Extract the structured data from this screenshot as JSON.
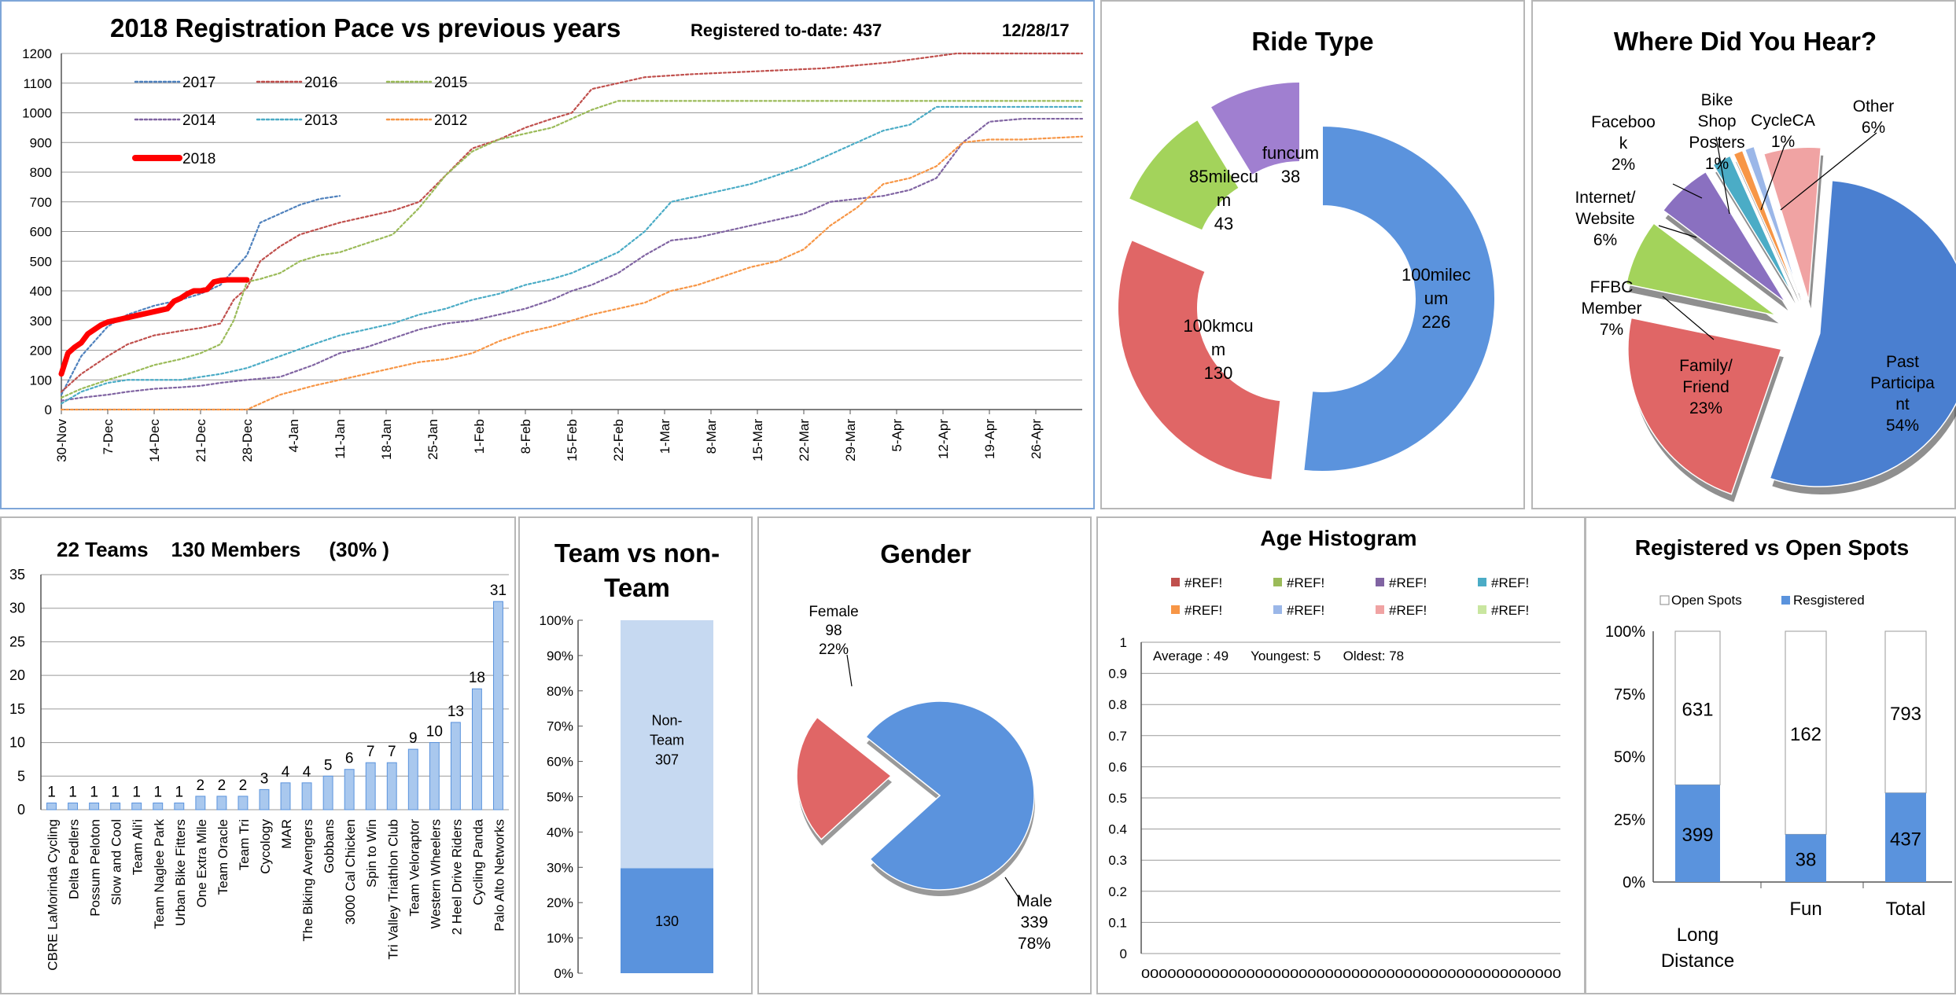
{
  "colors": {
    "grid": "#9a9a9a",
    "axis": "#555555",
    "blue": "#5a93dd",
    "blue_light": "#a9c8ee",
    "red": "#e06666",
    "green": "#a3d35b",
    "purple": "#a07fd0",
    "pink": "#f0a3a3",
    "orange": "#f39a4d",
    "teal": "#55b8d6",
    "highlight": "#ff0000"
  },
  "pace": {
    "title": "2018 Registration Pace vs previous years",
    "registered_label": "Registered to-date: 437",
    "date": "12/28/17",
    "chart_data": {
      "type": "line",
      "title": "2018 Registration Pace vs previous years",
      "ylim": [
        0,
        1200
      ],
      "yticks": [
        "0",
        "100",
        "200",
        "300",
        "400",
        "500",
        "600",
        "700",
        "800",
        "900",
        "1000",
        "1100",
        "1200"
      ],
      "x_labels": [
        "30-Nov",
        "7-Dec",
        "14-Dec",
        "21-Dec",
        "28-Dec",
        "4-Jan",
        "11-Jan",
        "18-Jan",
        "25-Jan",
        "1-Feb",
        "8-Feb",
        "15-Feb",
        "22-Feb",
        "1-Mar",
        "8-Mar",
        "15-Mar",
        "22-Mar",
        "29-Mar",
        "5-Apr",
        "12-Apr",
        "19-Apr",
        "26-Apr"
      ],
      "x_range_days": [
        0,
        154
      ],
      "series": [
        {
          "name": "2017",
          "color": "#4f81bd",
          "dashed": true,
          "days": [
            0,
            3,
            7,
            10,
            14,
            18,
            21,
            24,
            26,
            28,
            30,
            33,
            36,
            39,
            42
          ],
          "values": [
            50,
            180,
            280,
            320,
            350,
            370,
            390,
            420,
            470,
            520,
            630,
            660,
            690,
            710,
            720
          ]
        },
        {
          "name": "2016",
          "color": "#c0504d",
          "dashed": true,
          "days": [
            0,
            3,
            7,
            10,
            14,
            18,
            21,
            24,
            26,
            28,
            30,
            33,
            36,
            39,
            42,
            46,
            50,
            54,
            58,
            62,
            66,
            70,
            74,
            77,
            80,
            84,
            88,
            95,
            105,
            115,
            125,
            135,
            145,
            154
          ],
          "values": [
            60,
            120,
            180,
            220,
            250,
            265,
            275,
            290,
            370,
            410,
            500,
            550,
            590,
            610,
            630,
            650,
            670,
            700,
            790,
            880,
            910,
            950,
            980,
            1000,
            1080,
            1100,
            1120,
            1130,
            1140,
            1150,
            1170,
            1200,
            1200,
            1200
          ]
        },
        {
          "name": "2015",
          "color": "#9bbb59",
          "dashed": true,
          "days": [
            0,
            3,
            7,
            10,
            14,
            18,
            21,
            24,
            26,
            28,
            30,
            33,
            36,
            39,
            42,
            46,
            50,
            54,
            58,
            62,
            66,
            70,
            74,
            77,
            80,
            84,
            88,
            95,
            105,
            115,
            125,
            135,
            145,
            154
          ],
          "values": [
            40,
            70,
            100,
            120,
            150,
            170,
            190,
            220,
            300,
            430,
            440,
            460,
            500,
            520,
            530,
            560,
            590,
            680,
            790,
            870,
            910,
            930,
            950,
            980,
            1010,
            1040,
            1040,
            1040,
            1040,
            1040,
            1040,
            1040,
            1040,
            1040
          ]
        },
        {
          "name": "2014",
          "color": "#8064a2",
          "dashed": true,
          "days": [
            0,
            3,
            7,
            10,
            14,
            18,
            21,
            24,
            28,
            33,
            38,
            42,
            46,
            50,
            54,
            58,
            62,
            66,
            70,
            74,
            77,
            80,
            84,
            88,
            92,
            96,
            100,
            104,
            108,
            112,
            116,
            120,
            124,
            128,
            132,
            136,
            140,
            145,
            154
          ],
          "values": [
            30,
            40,
            50,
            60,
            70,
            75,
            80,
            90,
            100,
            110,
            150,
            190,
            210,
            240,
            270,
            290,
            300,
            320,
            340,
            370,
            400,
            420,
            460,
            520,
            570,
            580,
            600,
            620,
            640,
            660,
            700,
            710,
            720,
            740,
            780,
            900,
            970,
            980,
            980
          ]
        },
        {
          "name": "2013",
          "color": "#4bacc6",
          "dashed": true,
          "days": [
            0,
            3,
            7,
            10,
            14,
            18,
            21,
            24,
            28,
            33,
            38,
            42,
            46,
            50,
            54,
            58,
            62,
            66,
            70,
            74,
            77,
            80,
            84,
            88,
            92,
            96,
            100,
            104,
            108,
            112,
            116,
            120,
            124,
            128,
            132,
            136,
            140,
            145,
            154
          ],
          "values": [
            20,
            60,
            90,
            100,
            100,
            100,
            110,
            120,
            140,
            180,
            220,
            250,
            270,
            290,
            320,
            340,
            370,
            390,
            420,
            440,
            460,
            490,
            530,
            600,
            700,
            720,
            740,
            760,
            790,
            820,
            860,
            900,
            940,
            960,
            1020,
            1020,
            1020,
            1020,
            1020
          ]
        },
        {
          "name": "2012",
          "color": "#f79646",
          "dashed": true,
          "days": [
            0,
            10,
            21,
            28,
            30,
            33,
            38,
            42,
            46,
            50,
            54,
            58,
            62,
            66,
            70,
            74,
            77,
            80,
            84,
            88,
            92,
            96,
            100,
            104,
            108,
            112,
            116,
            120,
            124,
            128,
            132,
            136,
            140,
            145,
            154
          ],
          "values": [
            0,
            0,
            0,
            0,
            20,
            50,
            80,
            100,
            120,
            140,
            160,
            170,
            190,
            230,
            260,
            280,
            300,
            320,
            340,
            360,
            400,
            420,
            450,
            480,
            500,
            540,
            620,
            680,
            760,
            780,
            820,
            900,
            910,
            910,
            920
          ]
        },
        {
          "name": "2018",
          "color": "#ff0000",
          "dashed": false,
          "days": [
            0,
            1,
            2,
            3,
            4,
            5,
            6,
            7,
            8,
            9,
            10,
            11,
            12,
            13,
            14,
            15,
            16,
            17,
            18,
            19,
            20,
            21,
            22,
            23,
            24,
            25,
            26,
            27,
            28
          ],
          "values": [
            120,
            190,
            210,
            225,
            255,
            270,
            285,
            295,
            300,
            305,
            310,
            315,
            320,
            325,
            330,
            335,
            340,
            365,
            375,
            390,
            400,
            400,
            405,
            430,
            435,
            437,
            437,
            437,
            437
          ]
        }
      ]
    }
  },
  "ride_type": {
    "title": "Ride Type",
    "chart_data": {
      "type": "pie",
      "donut": true,
      "title": "Ride Type",
      "slices": [
        {
          "label": "100milec um",
          "value": 226,
          "color": "#5b93dd"
        },
        {
          "label": "100kmcu m",
          "value": 130,
          "color": "#e06666"
        },
        {
          "label": "85milecu m",
          "value": 43,
          "color": "#a3d35b"
        },
        {
          "label": "funcum",
          "value": 38,
          "color": "#a07fd0"
        }
      ]
    }
  },
  "hear": {
    "title": "Where Did You Hear?",
    "chart_data": {
      "type": "pie",
      "title": "Where Did You Hear?",
      "slices": [
        {
          "label": "Past Participant",
          "lines": [
            "Past",
            "Participa",
            "nt",
            "54%"
          ],
          "value": 54,
          "color": "#4a7fd0"
        },
        {
          "label": "Family/ Friend",
          "lines": [
            "Family/",
            "Friend",
            "23%"
          ],
          "value": 23,
          "color": "#e06666"
        },
        {
          "label": "FFBC Member",
          "lines": [
            "FFBC",
            "Member",
            "7%"
          ],
          "value": 7,
          "color": "#a3d35b"
        },
        {
          "label": "Internet/ Website",
          "lines": [
            "Internet/",
            "Website",
            "6%"
          ],
          "value": 6,
          "color": "#8a70c0"
        },
        {
          "label": "Facebook",
          "lines": [
            "Faceboo",
            "k",
            "2%"
          ],
          "value": 2,
          "color": "#4bacc6"
        },
        {
          "label": "Bike Shop Posters",
          "lines": [
            "Bike",
            "Shop",
            "Posters",
            "1%"
          ],
          "value": 1,
          "color": "#f79646"
        },
        {
          "label": "CycleCA",
          "lines": [
            "CycleCA",
            "1%"
          ],
          "value": 1,
          "color": "#9bb7e8"
        },
        {
          "label": "Other",
          "lines": [
            "Other",
            "6%"
          ],
          "value": 6,
          "color": "#f0a3a3"
        }
      ]
    }
  },
  "teams": {
    "title": "22 Teams    130 Members     (30% )",
    "chart_data": {
      "type": "bar",
      "title": "22 Teams 130 Members (30% )",
      "ylim": [
        0,
        35
      ],
      "yticks": [
        "0",
        "5",
        "10",
        "15",
        "20",
        "25",
        "30",
        "35"
      ],
      "categories": [
        "CBRE LaMorinda Cycling",
        "Delta Pedlers",
        "Possum Peloton",
        "Slow and Cool",
        "Team Ali'i",
        "Team Naglee Park",
        "Urban Bike Fitters",
        "One Extra Mile",
        "Team Oracle",
        "Team Tri",
        "Cycology",
        "MAR",
        "The Biking Avengers",
        "Gobbans",
        "3000 Cal Chicken",
        "Spin to Win",
        "Tri Valley Triathlon Club",
        "Team Veloraptor",
        "Western Wheelers",
        "2 Heel Drive Riders",
        "Cycling Panda",
        "Palo Alto Networks"
      ],
      "values": [
        1,
        1,
        1,
        1,
        1,
        1,
        1,
        2,
        2,
        2,
        3,
        4,
        4,
        5,
        6,
        7,
        7,
        9,
        10,
        13,
        18,
        31
      ],
      "value_labels": [
        "1",
        "1",
        "1",
        "1",
        "1",
        "1",
        "1",
        "2",
        "2",
        "2",
        "3",
        "4",
        "4",
        "5",
        "6",
        "7",
        "7",
        "9",
        "10",
        "13",
        "18",
        "31"
      ]
    }
  },
  "team_vs": {
    "title_line1": "Team vs non-",
    "title_line2": "Team",
    "chart_data": {
      "type": "bar",
      "stacked": true,
      "percent": true,
      "yticks": [
        "0%",
        "10%",
        "20%",
        "30%",
        "40%",
        "50%",
        "60%",
        "70%",
        "80%",
        "90%",
        "100%"
      ],
      "segments": [
        {
          "name": "Team",
          "value": 130,
          "label": "130"
        },
        {
          "name": "Non-Team",
          "value": 307,
          "label_lines": [
            "Non-",
            "Team",
            "307"
          ]
        }
      ]
    }
  },
  "gender": {
    "title": "Gender",
    "chart_data": {
      "type": "pie",
      "title": "Gender",
      "slices": [
        {
          "label": "Male",
          "value": 339,
          "percent": "78%",
          "color": "#5b93dd"
        },
        {
          "label": "Female",
          "value": 98,
          "percent": "22%",
          "color": "#e06666"
        }
      ],
      "labels": {
        "male": [
          "Male",
          "339",
          "78%"
        ],
        "female": [
          "Female",
          "98",
          "22%"
        ]
      }
    }
  },
  "age": {
    "title": "Age Histogram",
    "legend": [
      {
        "label": "#REF!",
        "color": "#c0504d"
      },
      {
        "label": "#REF!",
        "color": "#9bbb59"
      },
      {
        "label": "#REF!",
        "color": "#8064a2"
      },
      {
        "label": "#REF!",
        "color": "#4bacc6"
      },
      {
        "label": "#REF!",
        "color": "#f79646"
      },
      {
        "label": "#REF!",
        "color": "#9bb7e8"
      },
      {
        "label": "#REF!",
        "color": "#f0a3a3"
      },
      {
        "label": "#REF!",
        "color": "#c9e6a0"
      }
    ],
    "stats": "Average : 49      Youngest: 5      Oldest: 78",
    "chart_data": {
      "type": "bar",
      "title": "Age Histogram",
      "ylim": [
        0,
        1
      ],
      "yticks": [
        "0",
        "0.1",
        "0.2",
        "0.3",
        "0.4",
        "0.5",
        "0.6",
        "0.7",
        "0.8",
        "0.9",
        "1"
      ],
      "x_labels_text": "000000000000000000000000000000000000000000000000",
      "values": []
    }
  },
  "open": {
    "title": "Registered vs Open Spots",
    "legend": [
      {
        "label": "Open Spots",
        "color": "#ffffff"
      },
      {
        "label": "Resgistered",
        "color": "#5b93dd"
      }
    ],
    "chart_data": {
      "type": "bar",
      "stacked": true,
      "percent": true,
      "yticks": [
        "0%",
        "25%",
        "50%",
        "75%",
        "100%"
      ],
      "categories": [
        [
          "Long",
          "Distance"
        ],
        [
          "Fun"
        ],
        [
          "Total"
        ]
      ],
      "series": [
        {
          "name": "Resgistered",
          "values": [
            399,
            38,
            437
          ],
          "labels": [
            "399",
            "38",
            "437"
          ]
        },
        {
          "name": "Open Spots",
          "values": [
            631,
            162,
            793
          ],
          "labels": [
            "631",
            "162",
            "793"
          ]
        }
      ]
    }
  }
}
